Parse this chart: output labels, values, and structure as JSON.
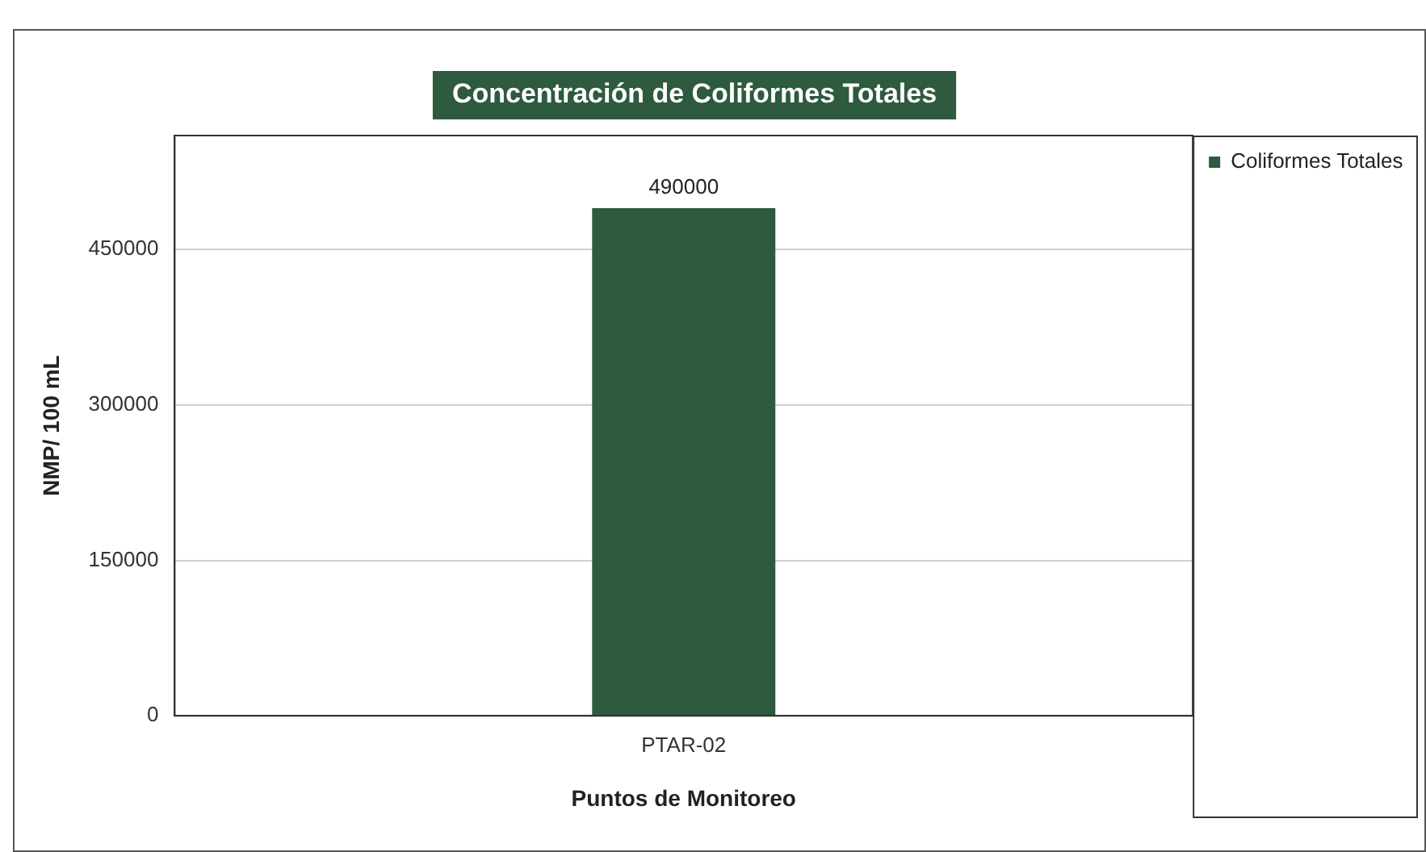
{
  "chart_data": {
    "type": "bar",
    "title": "Concentración de Coliformes Totales",
    "xlabel": "Puntos de Monitoreo",
    "ylabel": "NMP/ 100 mL",
    "categories": [
      "PTAR-02"
    ],
    "series": [
      {
        "name": "Coliformes Totales",
        "color": "#2e5a3e",
        "values": [
          490000
        ]
      }
    ],
    "ylim": [
      0,
      560000
    ],
    "yticks": [
      0,
      150000,
      300000,
      450000
    ],
    "grid": "y",
    "legend": "top right",
    "data_labels": true
  }
}
